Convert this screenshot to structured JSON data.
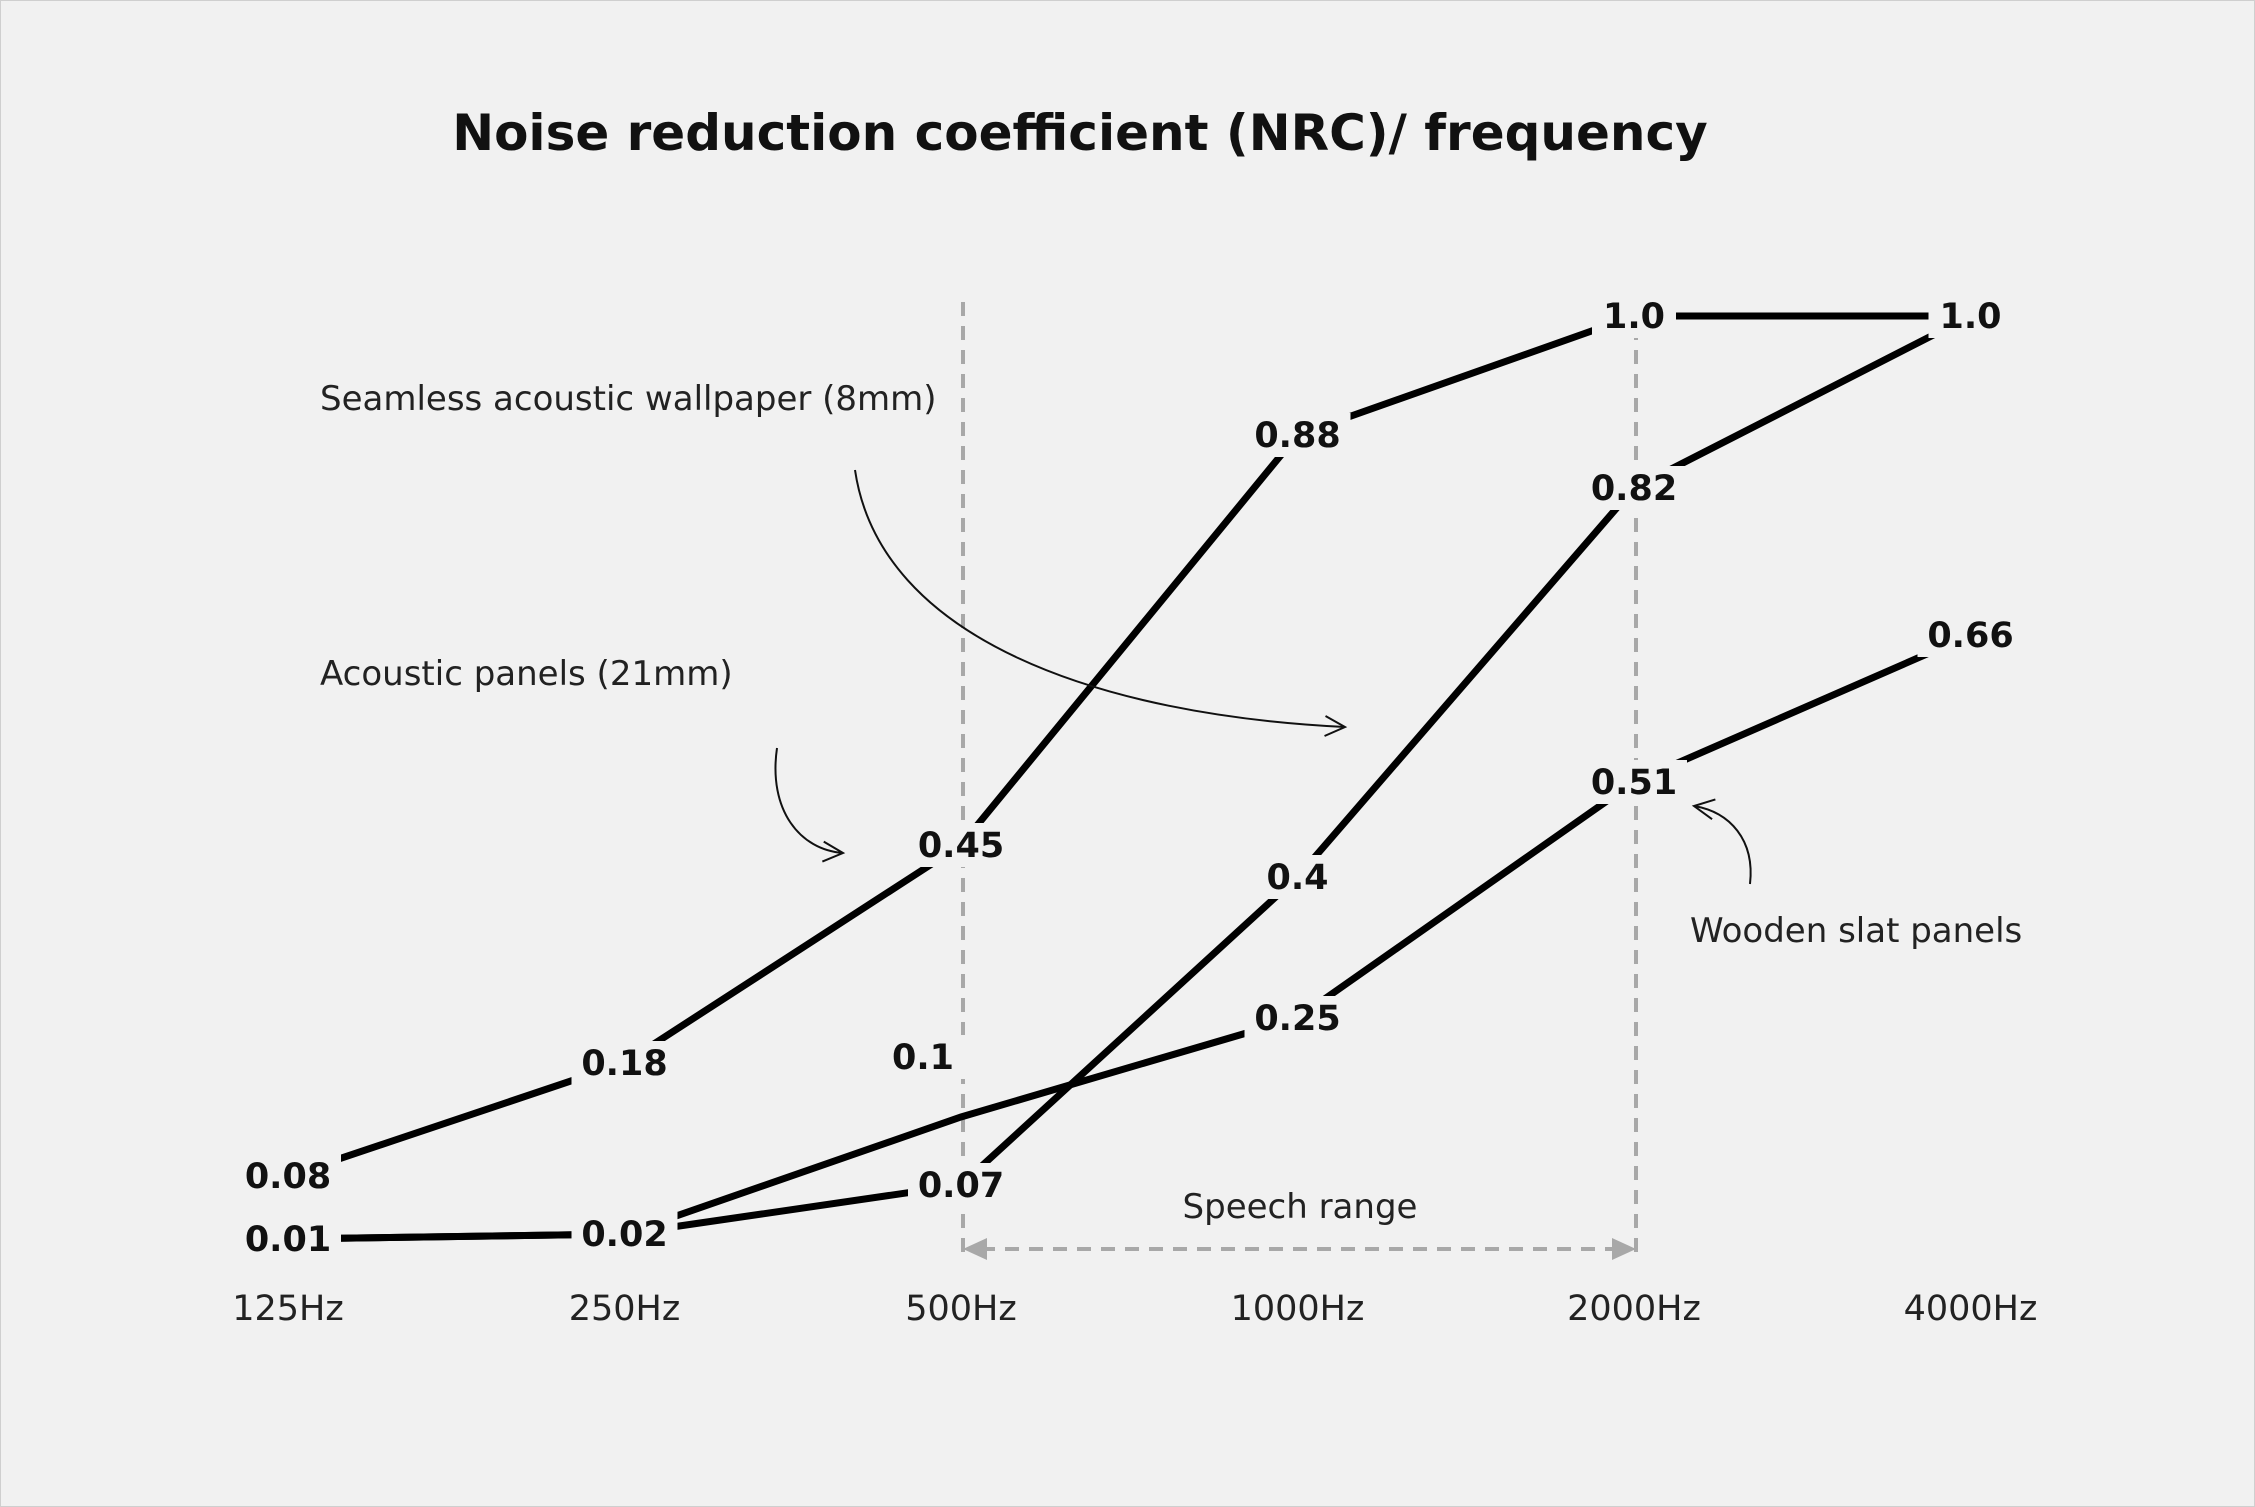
{
  "chart_data": {
    "type": "line",
    "title": "Noise reduction coefficient (NRC)/ frequency",
    "xlabel": "",
    "ylabel": "",
    "categories": [
      "125Hz",
      "250Hz",
      "500Hz",
      "1000Hz",
      "2000Hz",
      "4000Hz"
    ],
    "ylim": [
      0,
      1.0
    ],
    "grid": false,
    "series": [
      {
        "name": "Acoustic panels (21mm)",
        "values": [
          0.08,
          0.18,
          0.45,
          0.88,
          1.0,
          1.0
        ],
        "labels": [
          "0.08",
          "0.18",
          "0.45",
          "0.88",
          "1.0",
          "1.0"
        ]
      },
      {
        "name": "Seamless acoustic wallpaper (8mm)",
        "values": [
          0.01,
          0.02,
          0.07,
          0.4,
          0.82,
          1.0
        ],
        "labels": [
          "0.01",
          "0.02",
          "0.07",
          "0.4",
          "0.82",
          "1.0"
        ]
      },
      {
        "name": "Wooden slat panels",
        "values": [
          0.01,
          0.02,
          0.1,
          0.25,
          0.51,
          0.66
        ],
        "labels": [
          "",
          "",
          "0.1",
          "0.25",
          "0.51",
          "0.66"
        ]
      }
    ],
    "range_annotation": {
      "label": "Speech range",
      "from": "500Hz",
      "to": "2000Hz"
    },
    "colors": {
      "background": "#f1f1f1",
      "line": "#000000",
      "guide": "#a8a8a8",
      "text": "#111111"
    }
  }
}
